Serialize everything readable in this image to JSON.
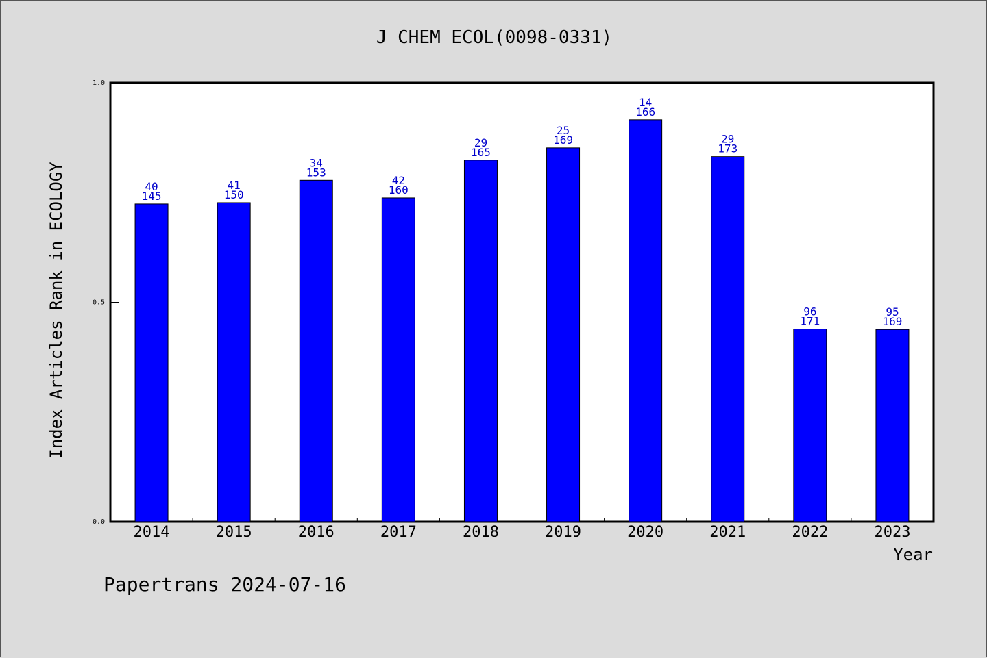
{
  "chart_data": {
    "type": "bar",
    "title": "J CHEM ECOL(0098-0331)",
    "xlabel": "Year",
    "ylabel": "Index Articles Rank in ECOLOGY",
    "ylim": [
      0,
      1.0
    ],
    "yticks": [
      "0.0",
      "0.5",
      "1.0"
    ],
    "grid": false,
    "bar_color": "#0000ff",
    "label_color": "#0000cc",
    "categories": [
      "2014",
      "2015",
      "2016",
      "2017",
      "2018",
      "2019",
      "2020",
      "2021",
      "2022",
      "2023"
    ],
    "values": [
      0.724,
      0.727,
      0.778,
      0.738,
      0.824,
      0.852,
      0.916,
      0.832,
      0.439,
      0.438
    ],
    "rank": [
      "40",
      "41",
      "34",
      "42",
      "29",
      "25",
      "14",
      "29",
      "96",
      "95"
    ],
    "total": [
      "145",
      "150",
      "153",
      "160",
      "165",
      "169",
      "166",
      "173",
      "171",
      "169"
    ]
  },
  "footer": "Papertrans 2024-07-16"
}
